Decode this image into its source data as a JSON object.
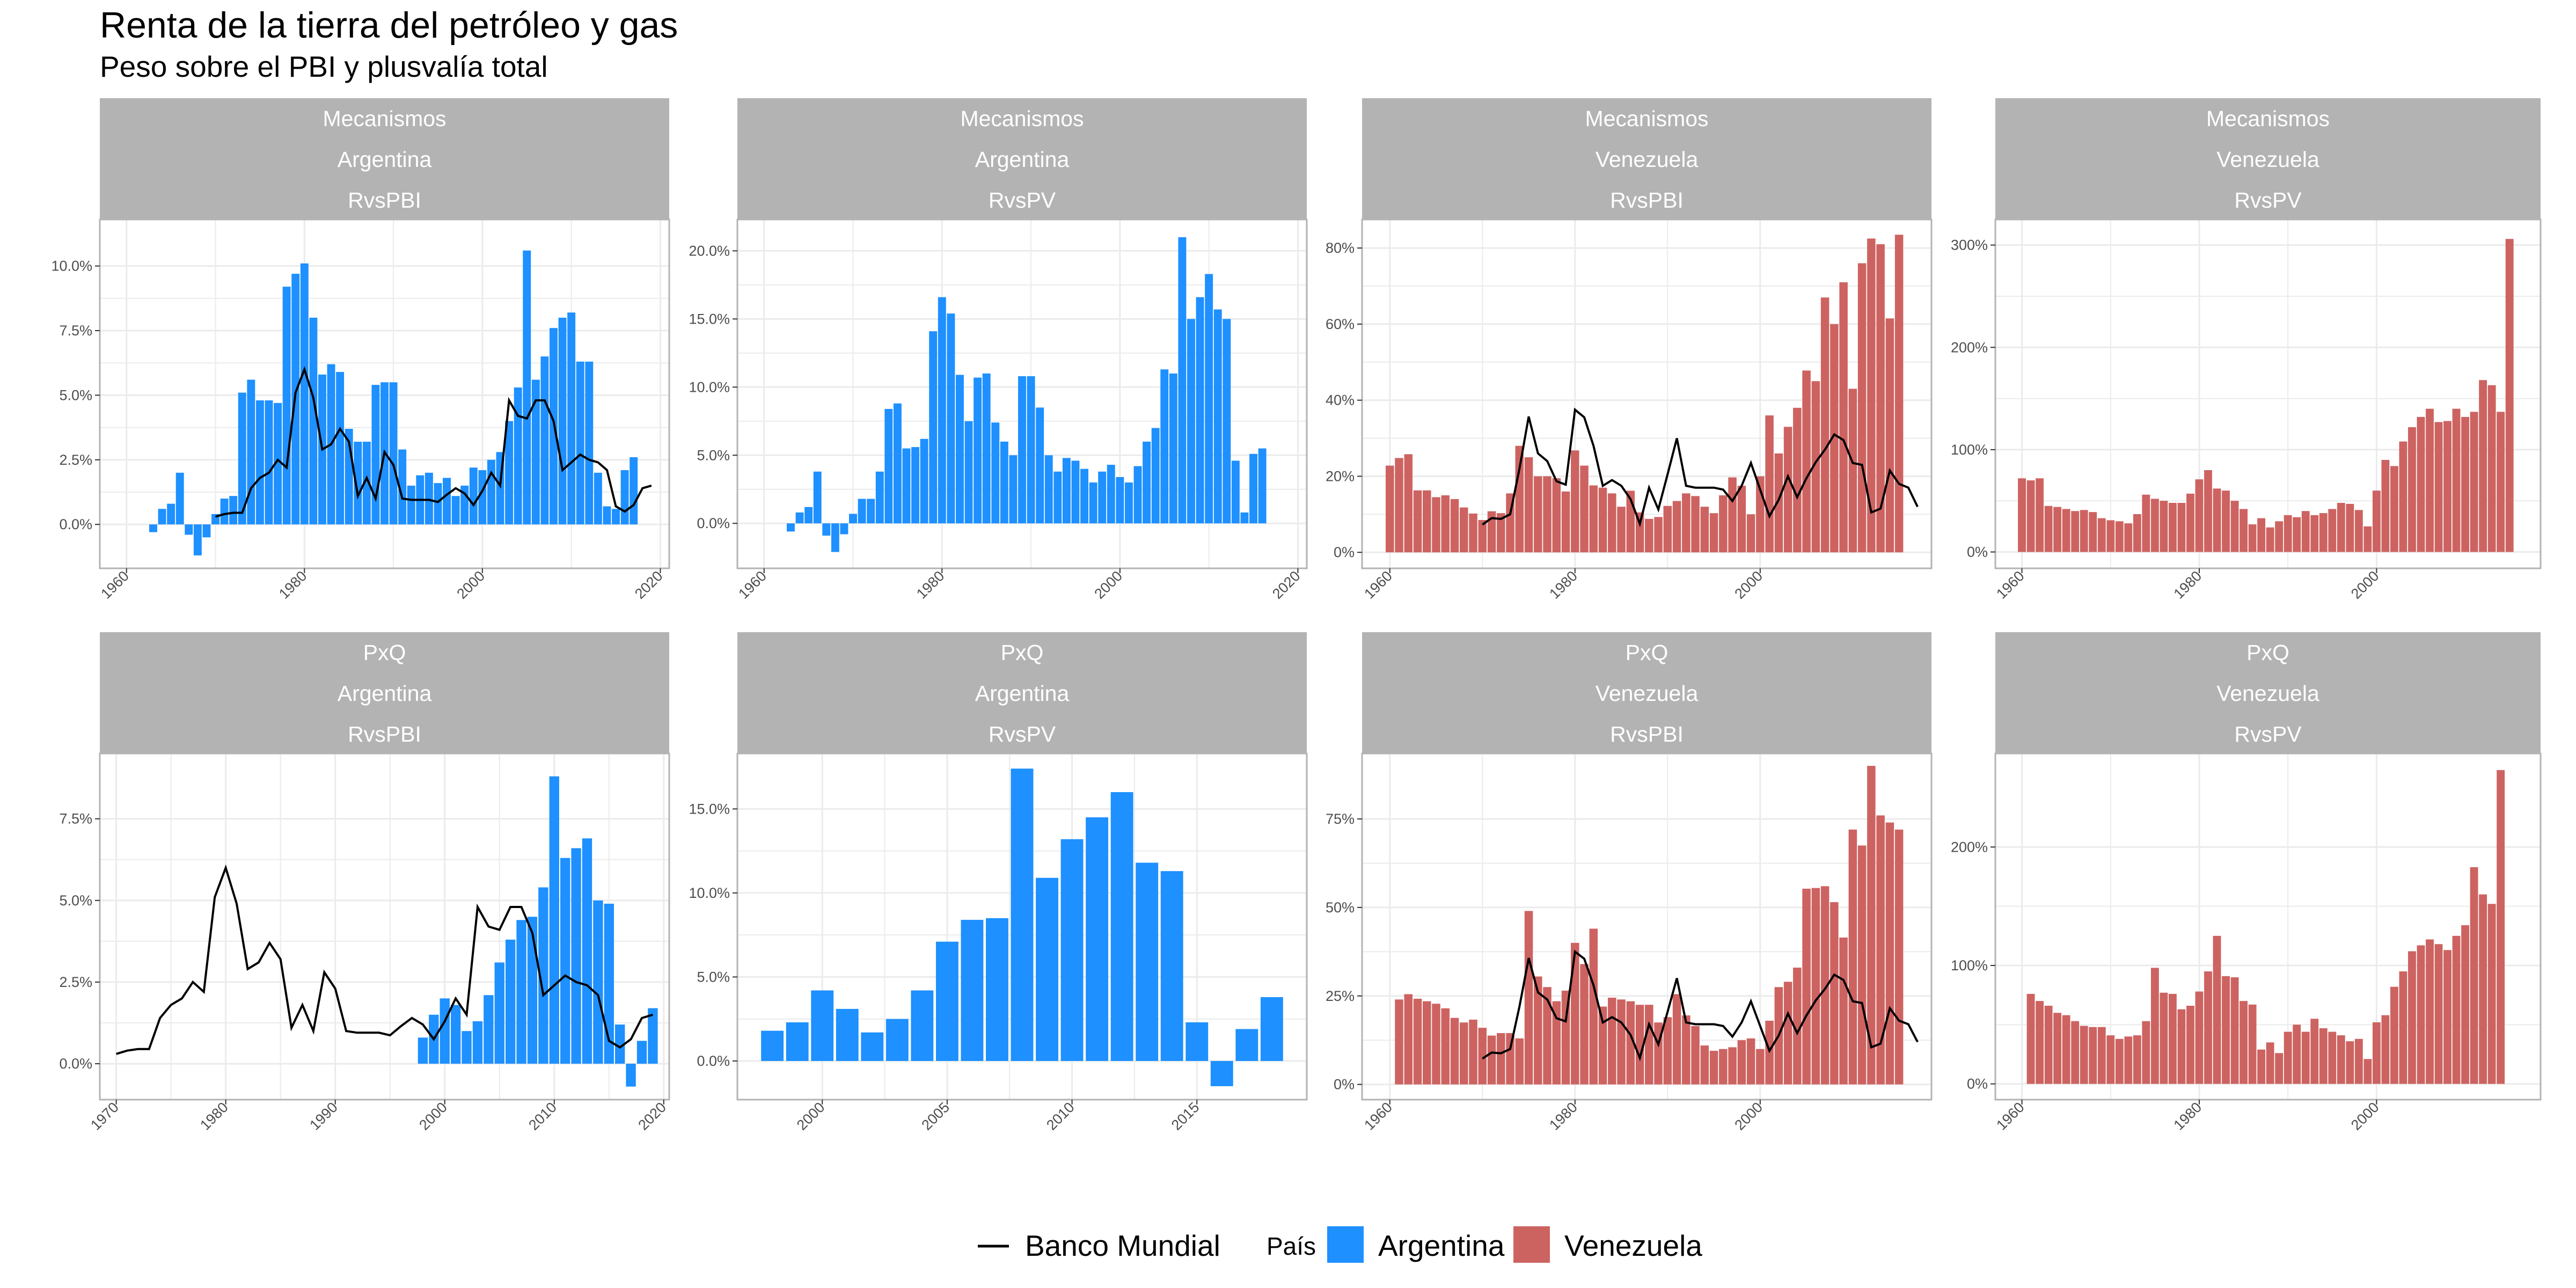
{
  "title": "Renta de la tierra del petróleo y gas",
  "subtitle": "Peso sobre el PBI y plusvalía total",
  "legend": {
    "line_label": "Banco Mundial",
    "fill_title": "País",
    "items": [
      {
        "name": "Argentina",
        "color": "#1e90ff"
      },
      {
        "name": "Venezuela",
        "color": "#cd6361"
      }
    ]
  },
  "colors": {
    "line": "#000000",
    "strip": "#b3b3b3",
    "grid": "#ebebeb",
    "border": "#b3b3b3"
  },
  "chart_data": [
    {
      "type": "bar",
      "strip": [
        "Mecanismos",
        "Argentina",
        "RvsPBI"
      ],
      "country": "Argentina",
      "xlim": [
        1957,
        2021
      ],
      "xticks": [
        1960,
        1980,
        2000,
        2020
      ],
      "ylim": [
        -0.017,
        0.118
      ],
      "yticks": [
        0,
        0.025,
        0.05,
        0.075,
        0.1
      ],
      "ytick_labels": [
        "0.0%",
        "2.5%",
        "5.0%",
        "7.5%",
        "10.0%"
      ],
      "x_start": 1963,
      "values": [
        -0.003,
        0.006,
        0.008,
        0.02,
        -0.004,
        -0.012,
        -0.005,
        0.004,
        0.01,
        0.011,
        0.051,
        0.056,
        0.048,
        0.048,
        0.047,
        0.092,
        0.097,
        0.101,
        0.08,
        0.058,
        0.062,
        0.059,
        0.037,
        0.032,
        0.032,
        0.054,
        0.055,
        0.055,
        0.029,
        0.015,
        0.019,
        0.02,
        0.016,
        0.018,
        0.011,
        0.015,
        0.022,
        0.021,
        0.025,
        0.028,
        0.04,
        0.053,
        0.106,
        0.056,
        0.065,
        0.076,
        0.08,
        0.082,
        0.063,
        0.063,
        0.02,
        0.007,
        0.006,
        0.021,
        0.026
      ],
      "line_x_start": 1970,
      "line": [
        0.003,
        0.004,
        0.0045,
        0.0045,
        0.014,
        0.018,
        0.02,
        0.025,
        0.022,
        0.051,
        0.06,
        0.049,
        0.029,
        0.031,
        0.037,
        0.032,
        0.011,
        0.018,
        0.01,
        0.028,
        0.023,
        0.01,
        0.0095,
        0.0095,
        0.0095,
        0.0087,
        0.0115,
        0.014,
        0.012,
        0.0075,
        0.013,
        0.02,
        0.015,
        0.048,
        0.042,
        0.041,
        0.048,
        0.048,
        0.04,
        0.021,
        0.024,
        0.027,
        0.025,
        0.024,
        0.021,
        0.007,
        0.005,
        0.0075,
        0.014,
        0.015
      ]
    },
    {
      "type": "bar",
      "strip": [
        "Mecanismos",
        "Argentina",
        "RvsPV"
      ],
      "country": "Argentina",
      "xlim": [
        1957,
        2021
      ],
      "xticks": [
        1960,
        1980,
        2000,
        2020
      ],
      "ylim": [
        -0.033,
        0.223
      ],
      "yticks": [
        0,
        0.05,
        0.1,
        0.15,
        0.2
      ],
      "ytick_labels": [
        "0.0%",
        "5.0%",
        "10.0%",
        "15.0%",
        "20.0%"
      ],
      "x_start": 1963,
      "values": [
        -0.006,
        0.008,
        0.012,
        0.038,
        -0.009,
        -0.021,
        -0.008,
        0.007,
        0.018,
        0.018,
        0.038,
        0.084,
        0.088,
        0.055,
        0.056,
        0.062,
        0.141,
        0.166,
        0.154,
        0.109,
        0.075,
        0.107,
        0.11,
        0.074,
        0.06,
        0.05,
        0.108,
        0.108,
        0.085,
        0.05,
        0.038,
        0.048,
        0.046,
        0.04,
        0.03,
        0.038,
        0.043,
        0.034,
        0.03,
        0.042,
        0.06,
        0.07,
        0.113,
        0.11,
        0.21,
        0.15,
        0.166,
        0.183,
        0.157,
        0.15,
        0.046,
        0.008,
        0.051,
        0.055
      ],
      "line_x_start": null,
      "line": []
    },
    {
      "type": "bar",
      "strip": [
        "Mecanismos",
        "Venezuela",
        "RvsPBI"
      ],
      "country": "Venezuela",
      "xlim": [
        1957,
        2018.5
      ],
      "xticks": [
        1960,
        1980,
        2000
      ],
      "ylim": [
        -0.042,
        0.875
      ],
      "yticks": [
        0,
        0.2,
        0.4,
        0.6,
        0.8
      ],
      "ytick_labels": [
        "0%",
        "20%",
        "40%",
        "60%",
        "80%"
      ],
      "x_start": 1960,
      "values": [
        0.228,
        0.248,
        0.258,
        0.163,
        0.163,
        0.145,
        0.15,
        0.14,
        0.118,
        0.102,
        0.085,
        0.108,
        0.103,
        0.155,
        0.28,
        0.25,
        0.2,
        0.2,
        0.195,
        0.16,
        0.268,
        0.228,
        0.176,
        0.17,
        0.155,
        0.12,
        0.162,
        0.105,
        0.088,
        0.093,
        0.122,
        0.135,
        0.155,
        0.148,
        0.12,
        0.103,
        0.15,
        0.197,
        0.175,
        0.1,
        0.2,
        0.36,
        0.26,
        0.33,
        0.38,
        0.478,
        0.45,
        0.67,
        0.6,
        0.71,
        0.43,
        0.76,
        0.825,
        0.81,
        0.615,
        0.835
      ],
      "line_x_start": 1970,
      "line": [
        0.073,
        0.09,
        0.088,
        0.1,
        0.22,
        0.357,
        0.26,
        0.24,
        0.187,
        0.178,
        0.375,
        0.355,
        0.28,
        0.175,
        0.19,
        0.175,
        0.14,
        0.075,
        0.17,
        0.113,
        0.205,
        0.3,
        0.175,
        0.17,
        0.17,
        0.17,
        0.165,
        0.135,
        0.175,
        0.235,
        0.165,
        0.095,
        0.138,
        0.2,
        0.145,
        0.195,
        0.237,
        0.27,
        0.31,
        0.295,
        0.235,
        0.23,
        0.105,
        0.115,
        0.215,
        0.18,
        0.17,
        0.12
      ]
    },
    {
      "type": "bar",
      "strip": [
        "Mecanismos",
        "Venezuela",
        "RvsPV"
      ],
      "country": "Venezuela",
      "xlim": [
        1957,
        2018.5
      ],
      "xticks": [
        1960,
        1980,
        2000
      ],
      "ylim": [
        -0.16,
        3.25
      ],
      "yticks": [
        0,
        1,
        2,
        3
      ],
      "ytick_labels": [
        "0%",
        "100%",
        "200%",
        "300%"
      ],
      "x_start": 1960,
      "values": [
        0.72,
        0.7,
        0.72,
        0.45,
        0.44,
        0.42,
        0.4,
        0.41,
        0.39,
        0.33,
        0.31,
        0.3,
        0.28,
        0.37,
        0.56,
        0.52,
        0.5,
        0.48,
        0.48,
        0.57,
        0.71,
        0.8,
        0.62,
        0.6,
        0.5,
        0.42,
        0.27,
        0.33,
        0.24,
        0.3,
        0.36,
        0.34,
        0.4,
        0.36,
        0.38,
        0.42,
        0.48,
        0.47,
        0.41,
        0.25,
        0.6,
        0.9,
        0.84,
        1.08,
        1.22,
        1.32,
        1.4,
        1.27,
        1.28,
        1.4,
        1.32,
        1.37,
        1.68,
        1.63,
        1.37,
        3.06
      ],
      "line_x_start": null,
      "line": []
    },
    {
      "type": "bar",
      "strip": [
        "PxQ",
        "Argentina",
        "RvsPBI"
      ],
      "country": "Argentina",
      "xlim": [
        1968.5,
        2020.5
      ],
      "xticks": [
        1970,
        1980,
        1990,
        2000,
        2010,
        2020
      ],
      "ylim": [
        -0.011,
        0.095
      ],
      "yticks": [
        0,
        0.025,
        0.05,
        0.075
      ],
      "ytick_labels": [
        "0.0%",
        "2.5%",
        "5.0%",
        "7.5%"
      ],
      "x_start": 1998,
      "values": [
        0.008,
        0.015,
        0.02,
        0.018,
        0.01,
        0.013,
        0.021,
        0.031,
        0.038,
        0.044,
        0.045,
        0.054,
        0.088,
        0.063,
        0.066,
        0.069,
        0.05,
        0.049,
        0.012,
        -0.007,
        0.007,
        0.017
      ],
      "line_x_start": 1970,
      "line": [
        0.003,
        0.004,
        0.0045,
        0.0045,
        0.014,
        0.018,
        0.02,
        0.025,
        0.022,
        0.051,
        0.06,
        0.049,
        0.029,
        0.031,
        0.037,
        0.032,
        0.011,
        0.018,
        0.01,
        0.028,
        0.023,
        0.01,
        0.0095,
        0.0095,
        0.0095,
        0.0087,
        0.0115,
        0.014,
        0.012,
        0.0075,
        0.013,
        0.02,
        0.015,
        0.048,
        0.042,
        0.041,
        0.048,
        0.048,
        0.04,
        0.021,
        0.024,
        0.027,
        0.025,
        0.024,
        0.021,
        0.007,
        0.005,
        0.0075,
        0.014,
        0.015
      ]
    },
    {
      "type": "bar",
      "strip": [
        "PxQ",
        "Argentina",
        "RvsPV"
      ],
      "country": "Argentina",
      "xlim": [
        1996.6,
        2019.4
      ],
      "xticks": [
        2000,
        2005,
        2010,
        2015
      ],
      "ylim": [
        -0.023,
        0.183
      ],
      "yticks": [
        0,
        0.05,
        0.1,
        0.15
      ],
      "ytick_labels": [
        "0.0%",
        "5.0%",
        "10.0%",
        "15.0%"
      ],
      "x_start": 1998,
      "values": [
        0.018,
        0.023,
        0.042,
        0.031,
        0.017,
        0.025,
        0.042,
        0.071,
        0.084,
        0.085,
        0.174,
        0.109,
        0.132,
        0.145,
        0.16,
        0.118,
        0.113,
        0.023,
        -0.015,
        0.019,
        0.038
      ],
      "line_x_start": null,
      "line": []
    },
    {
      "type": "bar",
      "strip": [
        "PxQ",
        "Venezuela",
        "RvsPBI"
      ],
      "country": "Venezuela",
      "xlim": [
        1957,
        2018.5
      ],
      "xticks": [
        1960,
        1980,
        2000
      ],
      "ylim": [
        -0.043,
        0.935
      ],
      "yticks": [
        0,
        0.25,
        0.5,
        0.75
      ],
      "ytick_labels": [
        "0%",
        "25%",
        "50%",
        "75%"
      ],
      "x_start": 1961,
      "values": [
        0.24,
        0.255,
        0.242,
        0.235,
        0.228,
        0.215,
        0.188,
        0.175,
        0.183,
        0.16,
        0.138,
        0.145,
        0.145,
        0.13,
        0.49,
        0.305,
        0.275,
        0.235,
        0.265,
        0.4,
        0.34,
        0.44,
        0.22,
        0.245,
        0.24,
        0.235,
        0.225,
        0.225,
        0.175,
        0.19,
        0.255,
        0.195,
        0.165,
        0.11,
        0.095,
        0.1,
        0.105,
        0.125,
        0.13,
        0.1,
        0.18,
        0.275,
        0.29,
        0.33,
        0.553,
        0.555,
        0.56,
        0.515,
        0.415,
        0.72,
        0.675,
        0.9,
        0.76,
        0.74,
        0.72
      ],
      "line_x_start": 1970,
      "line": [
        0.073,
        0.09,
        0.088,
        0.1,
        0.22,
        0.357,
        0.26,
        0.24,
        0.187,
        0.178,
        0.375,
        0.355,
        0.28,
        0.175,
        0.19,
        0.175,
        0.14,
        0.075,
        0.17,
        0.113,
        0.205,
        0.3,
        0.175,
        0.17,
        0.17,
        0.17,
        0.165,
        0.135,
        0.175,
        0.235,
        0.165,
        0.095,
        0.138,
        0.2,
        0.145,
        0.195,
        0.237,
        0.27,
        0.31,
        0.295,
        0.235,
        0.23,
        0.105,
        0.115,
        0.215,
        0.18,
        0.17,
        0.12
      ]
    },
    {
      "type": "bar",
      "strip": [
        "PxQ",
        "Venezuela",
        "RvsPV"
      ],
      "country": "Venezuela",
      "xlim": [
        1957,
        2018.5
      ],
      "xticks": [
        1960,
        1980,
        2000
      ],
      "ylim": [
        -0.133,
        2.79
      ],
      "yticks": [
        0,
        1,
        2
      ],
      "ytick_labels": [
        "0%",
        "100%",
        "200%"
      ],
      "x_start": 1961,
      "values": [
        0.76,
        0.7,
        0.66,
        0.6,
        0.58,
        0.53,
        0.49,
        0.48,
        0.48,
        0.41,
        0.38,
        0.4,
        0.41,
        0.53,
        0.98,
        0.77,
        0.76,
        0.63,
        0.66,
        0.78,
        0.95,
        1.25,
        0.91,
        0.9,
        0.7,
        0.67,
        0.29,
        0.35,
        0.26,
        0.44,
        0.5,
        0.44,
        0.55,
        0.47,
        0.44,
        0.41,
        0.36,
        0.38,
        0.21,
        0.52,
        0.58,
        0.82,
        0.95,
        1.12,
        1.17,
        1.22,
        1.18,
        1.13,
        1.25,
        1.34,
        1.83,
        1.6,
        1.52,
        2.65
      ],
      "line_x_start": null,
      "line": []
    }
  ]
}
